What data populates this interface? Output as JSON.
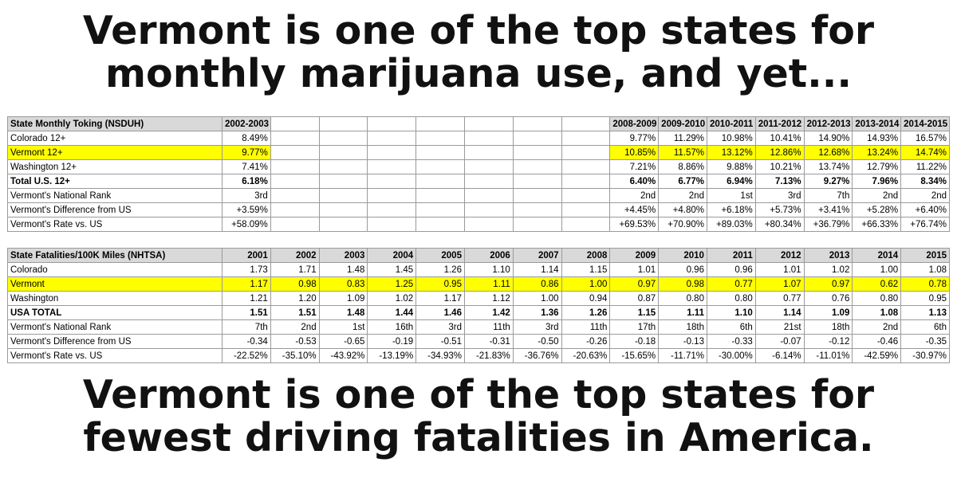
{
  "headline_top": [
    "Vermont is one of the top states for",
    "monthly marijuana use, and yet..."
  ],
  "headline_bottom": [
    "Vermont is one of the top states for",
    "fewest driving fatalities in America."
  ],
  "toking_table": {
    "title": "State Monthly Toking (NSDUH)",
    "columns": [
      "2002-2003",
      "",
      "",
      "",
      "",
      "",
      "",
      "",
      "2008-2009",
      "2009-2010",
      "2010-2011",
      "2011-2012",
      "2012-2013",
      "2013-2014",
      "2014-2015"
    ],
    "rows": [
      {
        "label": "Colorado 12+",
        "style": "normal",
        "values": [
          "8.49%",
          "",
          "",
          "",
          "",
          "",
          "",
          "",
          "9.77%",
          "11.29%",
          "10.98%",
          "10.41%",
          "14.90%",
          "14.93%",
          "16.57%"
        ]
      },
      {
        "label": "Vermont 12+",
        "style": "highlight",
        "values": [
          "9.77%",
          "",
          "",
          "",
          "",
          "",
          "",
          "",
          "10.85%",
          "11.57%",
          "13.12%",
          "12.86%",
          "12.68%",
          "13.24%",
          "14.74%"
        ]
      },
      {
        "label": "Washington 12+",
        "style": "normal",
        "values": [
          "7.41%",
          "",
          "",
          "",
          "",
          "",
          "",
          "",
          "7.21%",
          "8.86%",
          "9.88%",
          "10.21%",
          "13.74%",
          "12.79%",
          "11.22%"
        ]
      },
      {
        "label": "Total U.S. 12+",
        "style": "bold",
        "values": [
          "6.18%",
          "",
          "",
          "",
          "",
          "",
          "",
          "",
          "6.40%",
          "6.77%",
          "6.94%",
          "7.13%",
          "9.27%",
          "7.96%",
          "8.34%"
        ]
      },
      {
        "label": "Vermont's National Rank",
        "style": "normal",
        "values": [
          "3rd",
          "",
          "",
          "",
          "",
          "",
          "",
          "",
          "2nd",
          "2nd",
          "1st",
          "3rd",
          "7th",
          "2nd",
          "2nd"
        ]
      },
      {
        "label": "Vermont's Difference from US",
        "style": "normal",
        "values": [
          "+3.59%",
          "",
          "",
          "",
          "",
          "",
          "",
          "",
          "+4.45%",
          "+4.80%",
          "+6.18%",
          "+5.73%",
          "+3.41%",
          "+5.28%",
          "+6.40%"
        ]
      },
      {
        "label": "Vermont's Rate vs. US",
        "style": "normal",
        "values": [
          "+58.09%",
          "",
          "",
          "",
          "",
          "",
          "",
          "",
          "+69.53%",
          "+70.90%",
          "+89.03%",
          "+80.34%",
          "+36.79%",
          "+66.33%",
          "+76.74%"
        ]
      }
    ]
  },
  "fatalities_table": {
    "title": "State Fatalities/100K Miles (NHTSA)",
    "columns": [
      "2001",
      "2002",
      "2003",
      "2004",
      "2005",
      "2006",
      "2007",
      "2008",
      "2009",
      "2010",
      "2011",
      "2012",
      "2013",
      "2014",
      "2015"
    ],
    "rows": [
      {
        "label": "Colorado",
        "style": "normal",
        "values": [
          "1.73",
          "1.71",
          "1.48",
          "1.45",
          "1.26",
          "1.10",
          "1.14",
          "1.15",
          "1.01",
          "0.96",
          "0.96",
          "1.01",
          "1.02",
          "1.00",
          "1.08"
        ]
      },
      {
        "label": "Vermont",
        "style": "highlight",
        "values": [
          "1.17",
          "0.98",
          "0.83",
          "1.25",
          "0.95",
          "1.11",
          "0.86",
          "1.00",
          "0.97",
          "0.98",
          "0.77",
          "1.07",
          "0.97",
          "0.62",
          "0.78"
        ]
      },
      {
        "label": "Washington",
        "style": "normal",
        "values": [
          "1.21",
          "1.20",
          "1.09",
          "1.02",
          "1.17",
          "1.12",
          "1.00",
          "0.94",
          "0.87",
          "0.80",
          "0.80",
          "0.77",
          "0.76",
          "0.80",
          "0.95"
        ]
      },
      {
        "label": "USA TOTAL",
        "style": "bold",
        "values": [
          "1.51",
          "1.51",
          "1.48",
          "1.44",
          "1.46",
          "1.42",
          "1.36",
          "1.26",
          "1.15",
          "1.11",
          "1.10",
          "1.14",
          "1.09",
          "1.08",
          "1.13"
        ]
      },
      {
        "label": "Vermont's National Rank",
        "style": "normal",
        "values": [
          "7th",
          "2nd",
          "1st",
          "16th",
          "3rd",
          "11th",
          "3rd",
          "11th",
          "17th",
          "18th",
          "6th",
          "21st",
          "18th",
          "2nd",
          "6th"
        ]
      },
      {
        "label": "Vermont's Difference from US",
        "style": "normal",
        "values": [
          "-0.34",
          "-0.53",
          "-0.65",
          "-0.19",
          "-0.51",
          "-0.31",
          "-0.50",
          "-0.26",
          "-0.18",
          "-0.13",
          "-0.33",
          "-0.07",
          "-0.12",
          "-0.46",
          "-0.35"
        ]
      },
      {
        "label": "Vermont's Rate vs. US",
        "style": "normal",
        "values": [
          "-22.52%",
          "-35.10%",
          "-43.92%",
          "-13.19%",
          "-34.93%",
          "-21.83%",
          "-36.76%",
          "-20.63%",
          "-15.65%",
          "-11.71%",
          "-30.00%",
          "-6.14%",
          "-11.01%",
          "-42.59%",
          "-30.97%"
        ]
      }
    ]
  }
}
